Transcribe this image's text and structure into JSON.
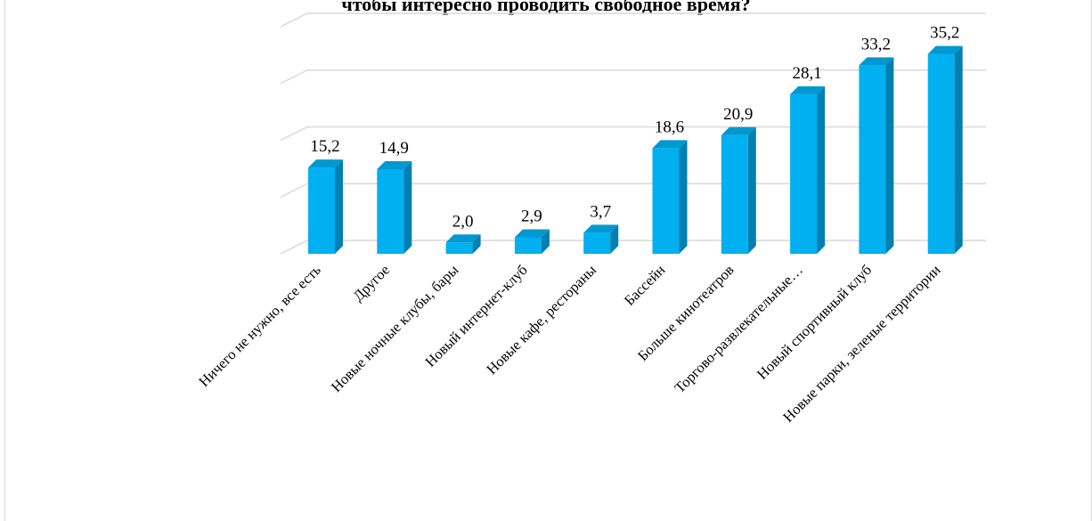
{
  "chart_data": {
    "type": "bar",
    "title": "чтобы интересно проводить свободное время?",
    "categories": [
      "Ничего не нужно, все есть",
      "Другое",
      "Новые ночные клубы, бары",
      "Новый интернет-клуб",
      "Новые кафе, рестораны",
      "Бассейн",
      "Больше кинотеатров",
      "Торгово-развлекательные…",
      "Новый спортивный клуб",
      "Новые парки, зеленые территории"
    ],
    "values": [
      15.2,
      14.9,
      2.0,
      2.9,
      3.7,
      18.6,
      20.9,
      28.1,
      33.2,
      35.2
    ],
    "value_labels": [
      "15,2",
      "14,9",
      "2,0",
      "2,9",
      "3,7",
      "18,6",
      "20,9",
      "28,1",
      "33,2",
      "35,2"
    ],
    "ylim": [
      0,
      40
    ],
    "gridline_step": 10,
    "grid": true,
    "style": "3d-column",
    "colors": {
      "bar_front": "#00B0F0",
      "bar_side": "#0080B0",
      "bar_top": "#0098D0",
      "grid": "#d9d9d9"
    }
  }
}
